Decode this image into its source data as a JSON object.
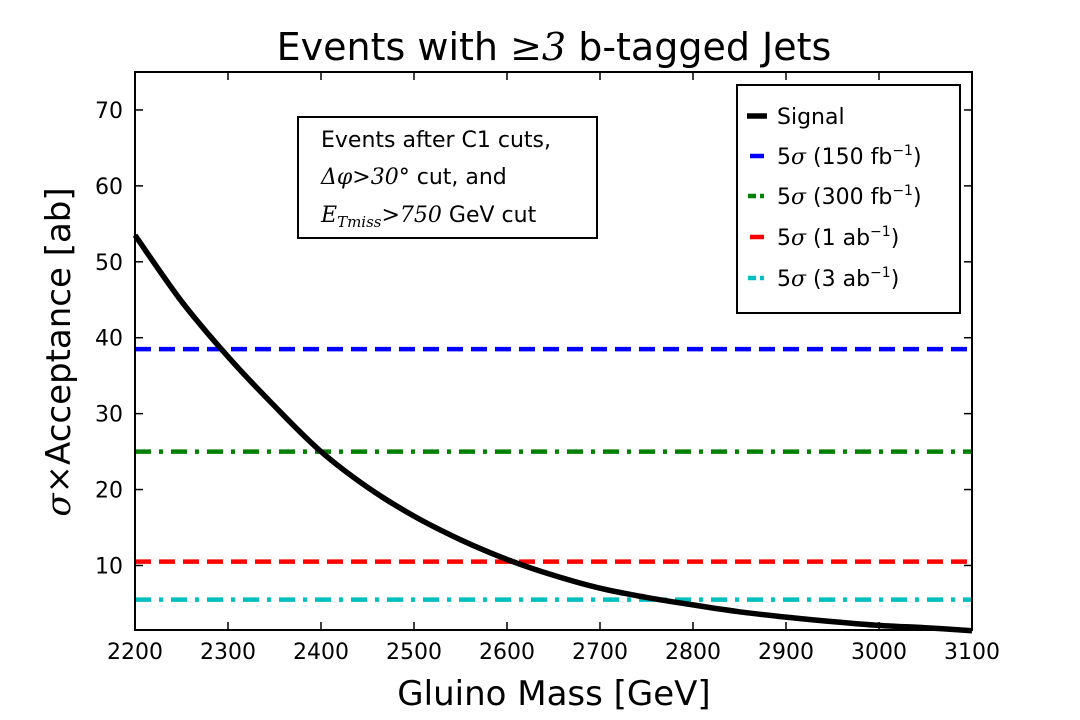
{
  "chart_data": {
    "type": "line",
    "title": {
      "prefix": "Events with ",
      "math": "≥3",
      "suffix": " b-tagged Jets"
    },
    "xlabel": "Gluino Mass [GeV]",
    "ylabel": {
      "math": "σ×",
      "text": "Acceptance [ab]"
    },
    "xlim": [
      2200,
      3100
    ],
    "ylim": [
      1.5,
      75
    ],
    "xticks": [
      2200,
      2300,
      2400,
      2500,
      2600,
      2700,
      2800,
      2900,
      3000,
      3100
    ],
    "yticks": [
      10,
      20,
      30,
      40,
      50,
      60,
      70
    ],
    "series": [
      {
        "name": "Signal",
        "kind": "curve",
        "color": "#000000",
        "style": "solid",
        "x": [
          2200,
          2250,
          2300,
          2350,
          2400,
          2450,
          2500,
          2550,
          2600,
          2650,
          2700,
          2750,
          2800,
          2850,
          2900,
          2950,
          3000,
          3050,
          3100
        ],
        "y": [
          53.5,
          44.8,
          37.5,
          31.0,
          25.0,
          20.3,
          16.5,
          13.4,
          10.8,
          8.7,
          7.0,
          5.8,
          4.8,
          3.9,
          3.2,
          2.6,
          2.1,
          1.8,
          1.4
        ]
      },
      {
        "name": "5σ (150 fb⁻¹)",
        "label_prefix": "5",
        "label_sigma": "σ",
        "label_rest": " (150 fb",
        "label_sup": "−1",
        "label_close": ")",
        "kind": "hline",
        "y": 38.5,
        "color": "#0000ff",
        "style": "dashed"
      },
      {
        "name": "5σ (300 fb⁻¹)",
        "label_prefix": "5",
        "label_sigma": "σ",
        "label_rest": " (300 fb",
        "label_sup": "−1",
        "label_close": ")",
        "kind": "hline",
        "y": 25.0,
        "color": "#008000",
        "style": "dashdot"
      },
      {
        "name": "5σ (1 ab⁻¹)",
        "label_prefix": "5",
        "label_sigma": "σ",
        "label_rest": " (1 ab",
        "label_sup": "−1",
        "label_close": ")",
        "kind": "hline",
        "y": 10.5,
        "color": "#ff0000",
        "style": "dashed"
      },
      {
        "name": "5σ (3 ab⁻¹)",
        "label_prefix": "5",
        "label_sigma": "σ",
        "label_rest": " (3 ab",
        "label_sup": "−1",
        "label_close": ")",
        "kind": "hline",
        "y": 5.5,
        "color": "#00bfbf",
        "style": "dashdot"
      }
    ],
    "legend": {
      "placement": "top-right"
    },
    "annotation": {
      "placement": "top-center",
      "line1": "Events after C1 cuts,",
      "line2_math": "Δφ>30°",
      "line2_text": " cut, and",
      "line3_math_main": "E",
      "line3_math_sub": "Tmiss",
      "line3_math_rest": ">750",
      "line3_text": " GeV cut"
    }
  }
}
